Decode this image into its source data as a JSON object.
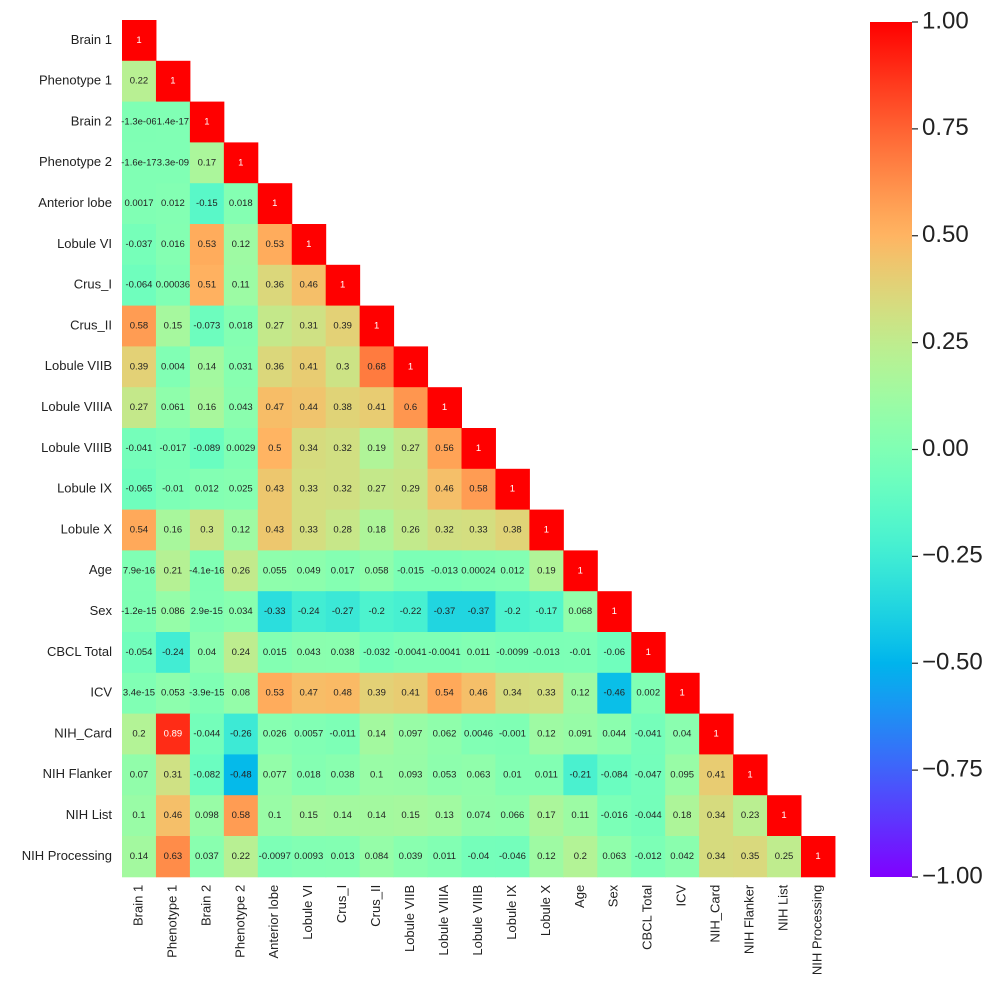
{
  "chart_data": {
    "type": "heatmap",
    "colormap": "rainbow",
    "clim": [
      -1,
      1
    ],
    "categories": [
      "Brain 1",
      "Phenotype 1",
      "Brain 2",
      "Phenotype 2",
      "Anterior lobe",
      "Lobule VI",
      "Crus_I",
      "Crus_II",
      "Lobule VIIB",
      "Lobule VIIIA",
      "Lobule VIIIB",
      "Lobule IX",
      "Lobule X",
      "Age",
      "Sex",
      "CBCL Total",
      "ICV",
      "NIH_Card",
      "NIH Flanker",
      "NIH List",
      "NIH Processing"
    ],
    "values": [
      [
        1
      ],
      [
        0.22,
        1
      ],
      [
        -1.3e-06,
        1.4e-17,
        1
      ],
      [
        -1.6e-17,
        3.3e-09,
        0.17,
        1
      ],
      [
        0.0017,
        0.012,
        -0.15,
        0.018,
        1
      ],
      [
        -0.037,
        0.016,
        0.53,
        0.12,
        0.53,
        1
      ],
      [
        -0.064,
        0.00036,
        0.51,
        0.11,
        0.36,
        0.46,
        1
      ],
      [
        0.58,
        0.15,
        -0.073,
        0.018,
        0.27,
        0.31,
        0.39,
        1
      ],
      [
        0.39,
        0.004,
        0.14,
        0.031,
        0.36,
        0.41,
        0.3,
        0.68,
        1
      ],
      [
        0.27,
        0.061,
        0.16,
        0.043,
        0.47,
        0.44,
        0.38,
        0.41,
        0.6,
        1
      ],
      [
        -0.041,
        -0.017,
        -0.089,
        0.0029,
        0.5,
        0.34,
        0.32,
        0.19,
        0.27,
        0.56,
        1
      ],
      [
        -0.065,
        -0.01,
        0.012,
        0.025,
        0.43,
        0.33,
        0.32,
        0.27,
        0.29,
        0.46,
        0.58,
        1
      ],
      [
        0.54,
        0.16,
        0.3,
        0.12,
        0.43,
        0.33,
        0.28,
        0.18,
        0.26,
        0.32,
        0.33,
        0.38,
        1
      ],
      [
        7.9e-16,
        0.21,
        -4.1e-16,
        0.26,
        0.055,
        0.049,
        0.017,
        0.058,
        -0.015,
        -0.013,
        0.00024,
        0.012,
        0.19,
        1
      ],
      [
        -1.2e-15,
        0.086,
        2.9e-15,
        0.034,
        -0.33,
        -0.24,
        -0.27,
        -0.2,
        -0.22,
        -0.37,
        -0.37,
        -0.2,
        -0.17,
        0.068,
        1
      ],
      [
        -0.054,
        -0.24,
        0.04,
        0.24,
        0.015,
        0.043,
        0.038,
        -0.032,
        -0.0041,
        -0.0041,
        0.011,
        -0.0099,
        -0.013,
        -0.01,
        -0.06,
        1
      ],
      [
        3.4e-15,
        0.053,
        -3.9e-15,
        0.08,
        0.53,
        0.47,
        0.48,
        0.39,
        0.41,
        0.54,
        0.46,
        0.34,
        0.33,
        0.12,
        -0.46,
        0.002,
        1
      ],
      [
        0.2,
        0.89,
        -0.044,
        -0.26,
        0.026,
        0.0057,
        -0.011,
        0.14,
        0.097,
        0.062,
        0.0046,
        -0.001,
        0.12,
        0.091,
        0.044,
        -0.041,
        0.04,
        1
      ],
      [
        0.07,
        0.31,
        -0.082,
        -0.48,
        0.077,
        0.018,
        0.038,
        0.1,
        0.093,
        0.053,
        0.063,
        0.01,
        0.011,
        -0.21,
        -0.084,
        -0.047,
        0.095,
        0.41,
        1
      ],
      [
        0.1,
        0.46,
        0.098,
        0.58,
        0.1,
        0.15,
        0.14,
        0.14,
        0.15,
        0.13,
        0.074,
        0.066,
        0.17,
        0.11,
        -0.016,
        -0.044,
        0.18,
        0.34,
        0.23,
        1
      ],
      [
        0.14,
        0.63,
        0.037,
        0.22,
        -0.0097,
        0.0093,
        0.013,
        0.084,
        0.039,
        0.011,
        -0.04,
        -0.046,
        0.12,
        0.2,
        0.063,
        -0.012,
        0.042,
        0.34,
        0.35,
        0.25,
        1
      ]
    ],
    "value_labels": [
      [
        "1"
      ],
      [
        "0.22",
        "1"
      ],
      [
        "-1.3e-06",
        "1.4e-17",
        "1"
      ],
      [
        "-1.6e-17",
        "3.3e-09",
        "0.17",
        "1"
      ],
      [
        "0.0017",
        "0.012",
        "-0.15",
        "0.018",
        "1"
      ],
      [
        "-0.037",
        "0.016",
        "0.53",
        "0.12",
        "0.53",
        "1"
      ],
      [
        "-0.064",
        "0.00036",
        "0.51",
        "0.11",
        "0.36",
        "0.46",
        "1"
      ],
      [
        "0.58",
        "0.15",
        "-0.073",
        "0.018",
        "0.27",
        "0.31",
        "0.39",
        "1"
      ],
      [
        "0.39",
        "0.004",
        "0.14",
        "0.031",
        "0.36",
        "0.41",
        "0.3",
        "0.68",
        "1"
      ],
      [
        "0.27",
        "0.061",
        "0.16",
        "0.043",
        "0.47",
        "0.44",
        "0.38",
        "0.41",
        "0.6",
        "1"
      ],
      [
        "-0.041",
        "-0.017",
        "-0.089",
        "0.0029",
        "0.5",
        "0.34",
        "0.32",
        "0.19",
        "0.27",
        "0.56",
        "1"
      ],
      [
        "-0.065",
        "-0.01",
        "0.012",
        "0.025",
        "0.43",
        "0.33",
        "0.32",
        "0.27",
        "0.29",
        "0.46",
        "0.58",
        "1"
      ],
      [
        "0.54",
        "0.16",
        "0.3",
        "0.12",
        "0.43",
        "0.33",
        "0.28",
        "0.18",
        "0.26",
        "0.32",
        "0.33",
        "0.38",
        "1"
      ],
      [
        "7.9e-16",
        "0.21",
        "-4.1e-16",
        "0.26",
        "0.055",
        "0.049",
        "0.017",
        "0.058",
        "-0.015",
        "-0.013",
        "0.00024",
        "0.012",
        "0.19",
        "1"
      ],
      [
        "-1.2e-15",
        "0.086",
        "2.9e-15",
        "0.034",
        "-0.33",
        "-0.24",
        "-0.27",
        "-0.2",
        "-0.22",
        "-0.37",
        "-0.37",
        "-0.2",
        "-0.17",
        "0.068",
        "1"
      ],
      [
        "-0.054",
        "-0.24",
        "0.04",
        "0.24",
        "0.015",
        "0.043",
        "0.038",
        "-0.032",
        "-0.0041",
        "-0.0041",
        "0.011",
        "-0.0099",
        "-0.013",
        "-0.01",
        "-0.06",
        "1"
      ],
      [
        "3.4e-15",
        "0.053",
        "-3.9e-15",
        "0.08",
        "0.53",
        "0.47",
        "0.48",
        "0.39",
        "0.41",
        "0.54",
        "0.46",
        "0.34",
        "0.33",
        "0.12",
        "-0.46",
        "0.002",
        "1"
      ],
      [
        "0.2",
        "0.89",
        "-0.044",
        "-0.26",
        "0.026",
        "0.0057",
        "-0.011",
        "0.14",
        "0.097",
        "0.062",
        "0.0046",
        "-0.001",
        "0.12",
        "0.091",
        "0.044",
        "-0.041",
        "0.04",
        "1"
      ],
      [
        "0.07",
        "0.31",
        "-0.082",
        "-0.48",
        "0.077",
        "0.018",
        "0.038",
        "0.1",
        "0.093",
        "0.053",
        "0.063",
        "0.01",
        "0.011",
        "-0.21",
        "-0.084",
        "-0.047",
        "0.095",
        "0.41",
        "1"
      ],
      [
        "0.1",
        "0.46",
        "0.098",
        "0.58",
        "0.1",
        "0.15",
        "0.14",
        "0.14",
        "0.15",
        "0.13",
        "0.074",
        "0.066",
        "0.17",
        "0.11",
        "-0.016",
        "-0.044",
        "0.18",
        "0.34",
        "0.23",
        "1"
      ],
      [
        "0.14",
        "0.63",
        "0.037",
        "0.22",
        "-0.0097",
        "0.0093",
        "0.013",
        "0.084",
        "0.039",
        "0.011",
        "-0.04",
        "-0.046",
        "0.12",
        "0.2",
        "0.063",
        "-0.012",
        "0.042",
        "0.34",
        "0.35",
        "0.25",
        "1"
      ]
    ],
    "cticks": [
      {
        "value": 1,
        "label": "1.00"
      },
      {
        "value": 0.75,
        "label": "0.75"
      },
      {
        "value": 0.5,
        "label": "0.50"
      },
      {
        "value": 0.25,
        "label": "0.25"
      },
      {
        "value": 0,
        "label": "0.00"
      },
      {
        "value": -0.25,
        "label": "−0.25"
      },
      {
        "value": -0.5,
        "label": "−0.50"
      },
      {
        "value": -0.75,
        "label": "−0.75"
      },
      {
        "value": -1,
        "label": "−1.00"
      }
    ]
  }
}
